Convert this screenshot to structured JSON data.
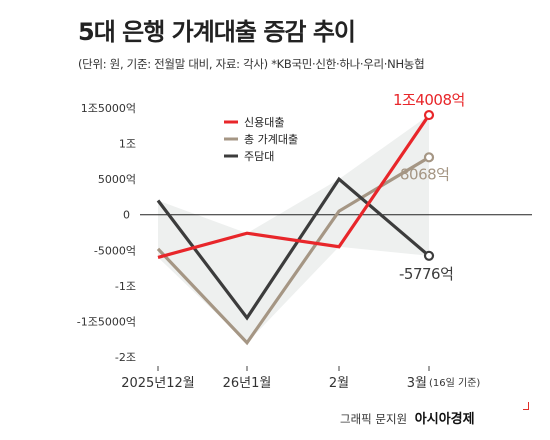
{
  "header": {
    "title": "5대 은행 가계대출 증감 추이",
    "subtitle": "(단위: 원, 기준: 전월말 대비, 자료: 각사) *KB국민·신한·하나·우리·NH농협"
  },
  "source": {
    "prefix": "그래픽 문지원",
    "brand": "아시아경제"
  },
  "colors": {
    "credit": "#e8262a",
    "total": "#a59684",
    "mortgage": "#3c3c3c",
    "shade": "#eef0ef"
  },
  "chart_data": {
    "type": "line",
    "categories": [
      "2025년12월",
      "26년1월",
      "2월",
      "3월"
    ],
    "category_note": "(16일 기준)",
    "y_unit": "억원",
    "ylim": [
      -20000,
      15000
    ],
    "yticks": [
      {
        "value": 15000,
        "label": "1조5000억"
      },
      {
        "value": 10000,
        "label": "1조"
      },
      {
        "value": 5000,
        "label": "5000억"
      },
      {
        "value": 0,
        "label": "0"
      },
      {
        "value": -5000,
        "label": "-5000억"
      },
      {
        "value": -10000,
        "label": "-1조"
      },
      {
        "value": -15000,
        "label": "-1조5000억"
      },
      {
        "value": -20000,
        "label": "-2조"
      }
    ],
    "grid": false,
    "legend": "top-left",
    "series": [
      {
        "key": "credit",
        "name": "신용대출",
        "values": [
          -6000,
          -2600,
          -4500,
          14008
        ],
        "end_label": "1조4008억"
      },
      {
        "key": "total",
        "name": "총 가계대출",
        "values": [
          -4800,
          -18000,
          500,
          8068
        ],
        "end_label": "8068억"
      },
      {
        "key": "mortgage",
        "name": "주담대",
        "values": [
          2000,
          -14500,
          5000,
          -5776
        ],
        "end_label": "-5776억"
      }
    ]
  }
}
